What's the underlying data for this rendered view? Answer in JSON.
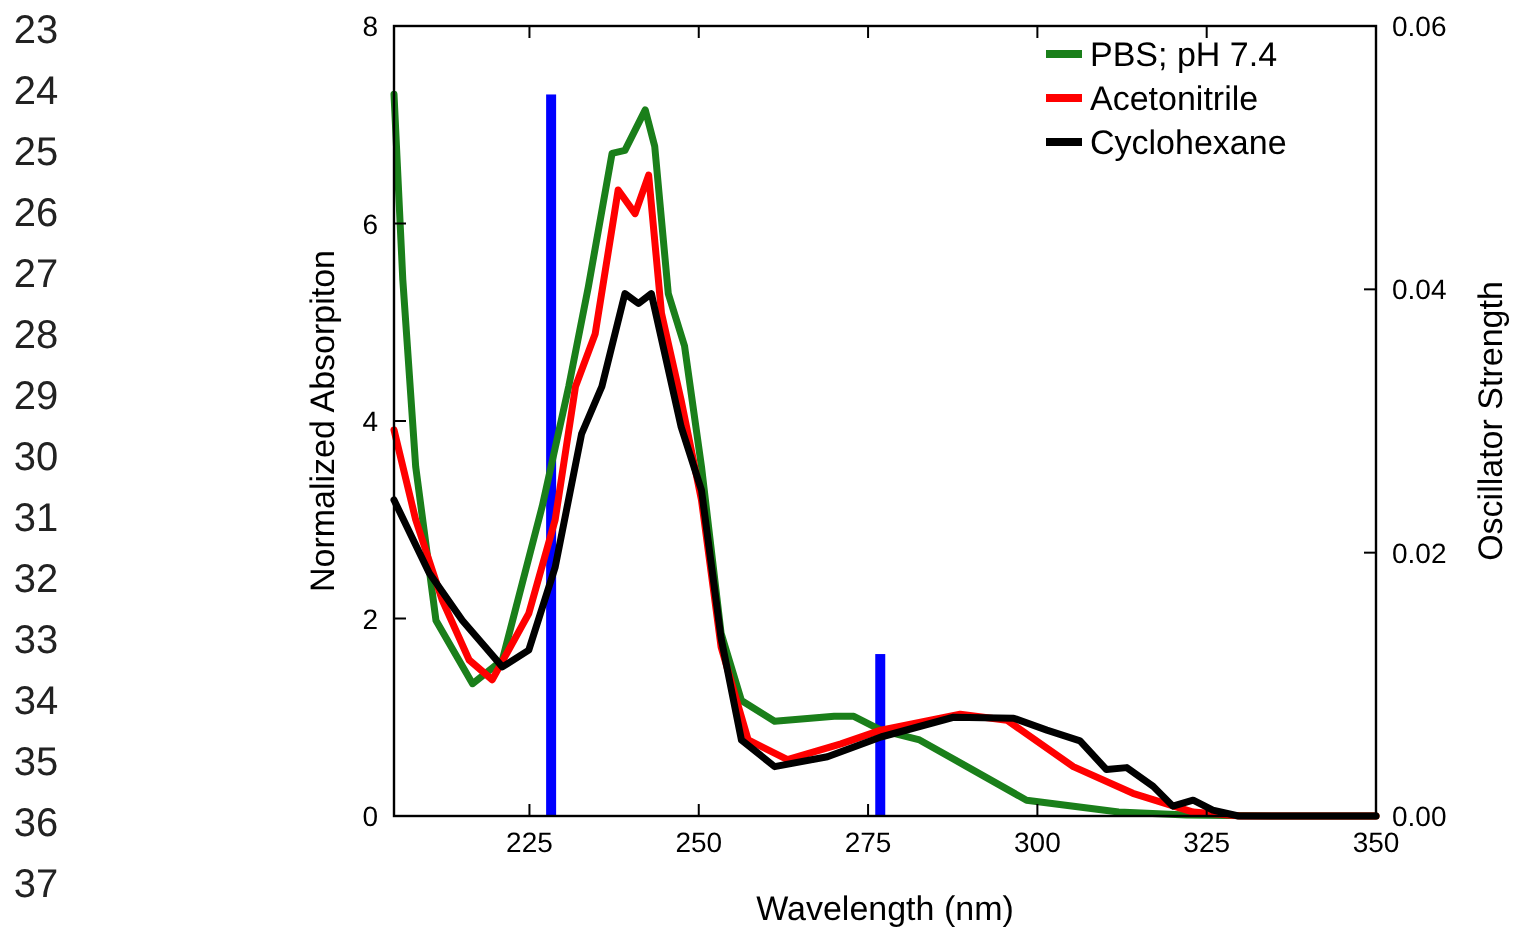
{
  "chart_data": {
    "type": "line",
    "xlabel": "Wavelength (nm)",
    "ylabel": "Normalized Absorpiton",
    "y2label": "Oscillator Strength",
    "xlim": [
      205,
      350
    ],
    "xticks": [
      225,
      250,
      275,
      300,
      325,
      350
    ],
    "ylim": [
      0,
      8
    ],
    "yticks": [
      0,
      2,
      4,
      6,
      8
    ],
    "y2lim": [
      0,
      0.06
    ],
    "y2ticks": [
      {
        "value": 0,
        "label": "0.00"
      },
      {
        "value": 0.02,
        "label": "0.02"
      },
      {
        "value": 0.04,
        "label": "0.04"
      },
      {
        "value": 0.06,
        "label": "0.06"
      }
    ],
    "legend": "top right",
    "grid": false,
    "marker": "none",
    "line_style": "solid",
    "annotations": [
      "23",
      "24",
      "25",
      "26",
      "27",
      "28",
      "29",
      "30",
      "31",
      "32",
      "33",
      "34",
      "35",
      "36",
      "37"
    ],
    "series": [
      {
        "name": "PBS; pH 7.4",
        "color": "#1a7f1a",
        "x": [
          205,
          206.3,
          208.2,
          211.2,
          216.6,
          221,
          226.9,
          230.8,
          233.7,
          237.2,
          239.1,
          242.1,
          243.5,
          245.5,
          247.9,
          250.4,
          253.3,
          256.3,
          261.2,
          270,
          272.9,
          276.9,
          282.6,
          289.6,
          298.4,
          312,
          322,
          335,
          350
        ],
        "values": [
          7.31,
          5.43,
          3.54,
          1.98,
          1.34,
          1.58,
          3.14,
          4.35,
          5.36,
          6.71,
          6.74,
          7.15,
          6.78,
          5.29,
          4.76,
          3.54,
          1.85,
          1.17,
          0.96,
          1.01,
          1.01,
          0.87,
          0.77,
          0.5,
          0.16,
          0.04,
          0.01,
          0,
          0
        ]
      },
      {
        "name": "Acetonitrile",
        "color": "#ff0000",
        "x": [
          205,
          208.2,
          212.1,
          216.1,
          219.5,
          224.9,
          228.8,
          231.8,
          234.7,
          238.1,
          240.6,
          242.6,
          244.5,
          247.4,
          250.4,
          253.3,
          257.3,
          263.1,
          271,
          276.9,
          288.6,
          295.5,
          305.3,
          314.1,
          323,
          330,
          350
        ],
        "values": [
          3.91,
          3.0,
          2.19,
          1.58,
          1.38,
          2.05,
          3.0,
          4.35,
          4.88,
          6.34,
          6.1,
          6.49,
          5.09,
          4.21,
          3.2,
          1.71,
          0.77,
          0.57,
          0.73,
          0.87,
          1.03,
          0.97,
          0.5,
          0.23,
          0.04,
          0,
          0
        ]
      },
      {
        "name": "Cyclohexane",
        "color": "#000000",
        "x": [
          205,
          210.2,
          215.1,
          221,
          224.9,
          228.8,
          232.7,
          235.7,
          239.1,
          241.1,
          243,
          247.4,
          250.4,
          253.3,
          256.3,
          261.2,
          269,
          276.9,
          287.6,
          296.5,
          301.4,
          306.3,
          310.2,
          313.2,
          317.1,
          320,
          323,
          325.9,
          329.7,
          350
        ],
        "values": [
          3.2,
          2.46,
          1.98,
          1.51,
          1.68,
          2.52,
          3.87,
          4.35,
          5.29,
          5.19,
          5.29,
          3.94,
          3.3,
          1.8,
          0.77,
          0.5,
          0.6,
          0.8,
          1.0,
          0.99,
          0.87,
          0.76,
          0.47,
          0.49,
          0.3,
          0.1,
          0.16,
          0.06,
          0,
          0
        ]
      },
      {
        "type": "bar",
        "axis": "y2",
        "color": "#0000ff",
        "x": [
          228.2,
          276.8
        ],
        "values": [
          0.0548,
          0.0123
        ]
      }
    ]
  }
}
